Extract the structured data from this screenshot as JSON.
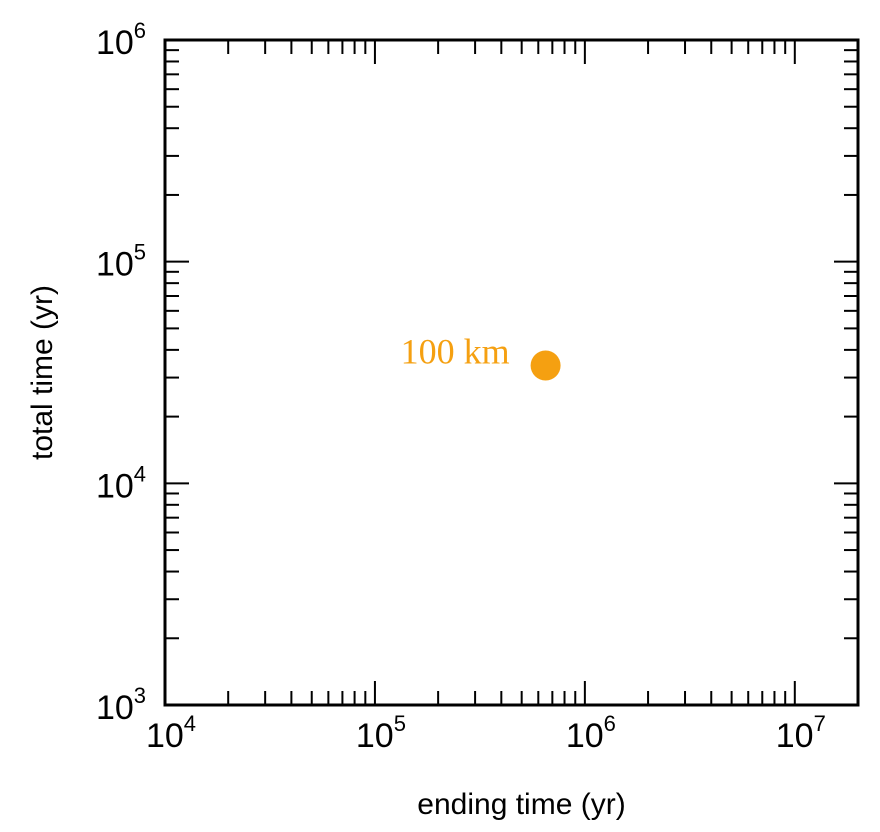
{
  "chart_data": {
    "type": "scatter",
    "title": "",
    "xlabel": "ending time (yr)",
    "ylabel": "total time  (yr)",
    "xscale": "log",
    "yscale": "log",
    "xlim": [
      10000,
      20000000
    ],
    "ylim": [
      1000,
      1000000
    ],
    "x_ticks": [
      {
        "value": 10000,
        "base": "10",
        "exp": "4"
      },
      {
        "value": 100000,
        "base": "10",
        "exp": "5"
      },
      {
        "value": 1000000,
        "base": "10",
        "exp": "6"
      },
      {
        "value": 10000000,
        "base": "10",
        "exp": "7"
      }
    ],
    "y_ticks": [
      {
        "value": 1000,
        "base": "10",
        "exp": "3"
      },
      {
        "value": 10000,
        "base": "10",
        "exp": "4"
      },
      {
        "value": 100000,
        "base": "10",
        "exp": "5"
      },
      {
        "value": 1000000,
        "base": "10",
        "exp": "6"
      }
    ],
    "grid": false,
    "points": [
      {
        "x": 650000,
        "y": 34000,
        "label": "100 km",
        "color": "#f5a011"
      }
    ]
  }
}
